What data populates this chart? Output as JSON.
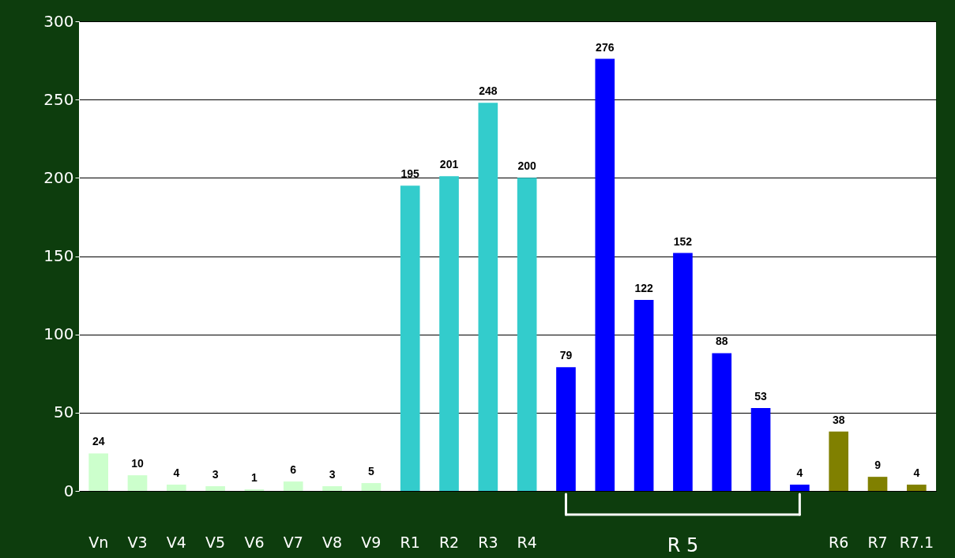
{
  "chart_data": {
    "type": "bar",
    "categories": [
      "Vn",
      "V3",
      "V4",
      "V5",
      "V6",
      "V7",
      "V8",
      "V9",
      "R1",
      "R2",
      "R3",
      "R4",
      null,
      null,
      null,
      null,
      null,
      null,
      null,
      "R6",
      "R7",
      "R7.1"
    ],
    "values": [
      24,
      10,
      4,
      3,
      1,
      6,
      3,
      5,
      195,
      201,
      248,
      200,
      79,
      276,
      122,
      152,
      88,
      53,
      4,
      38,
      9,
      4
    ],
    "colors": [
      "#ccffcc",
      "#ccffcc",
      "#ccffcc",
      "#ccffcc",
      "#ccffcc",
      "#ccffcc",
      "#ccffcc",
      "#ccffcc",
      "#33cccc",
      "#33cccc",
      "#33cccc",
      "#33cccc",
      "#0000ff",
      "#0000ff",
      "#0000ff",
      "#0000ff",
      "#0000ff",
      "#0000ff",
      "#0000ff",
      "#808000",
      "#808000",
      "#808000"
    ],
    "ylim": [
      0,
      300
    ],
    "yticks": [
      0,
      50,
      100,
      150,
      200,
      250,
      300
    ],
    "grid": "y",
    "data_labels": true,
    "annotations": [
      "R 5"
    ]
  }
}
